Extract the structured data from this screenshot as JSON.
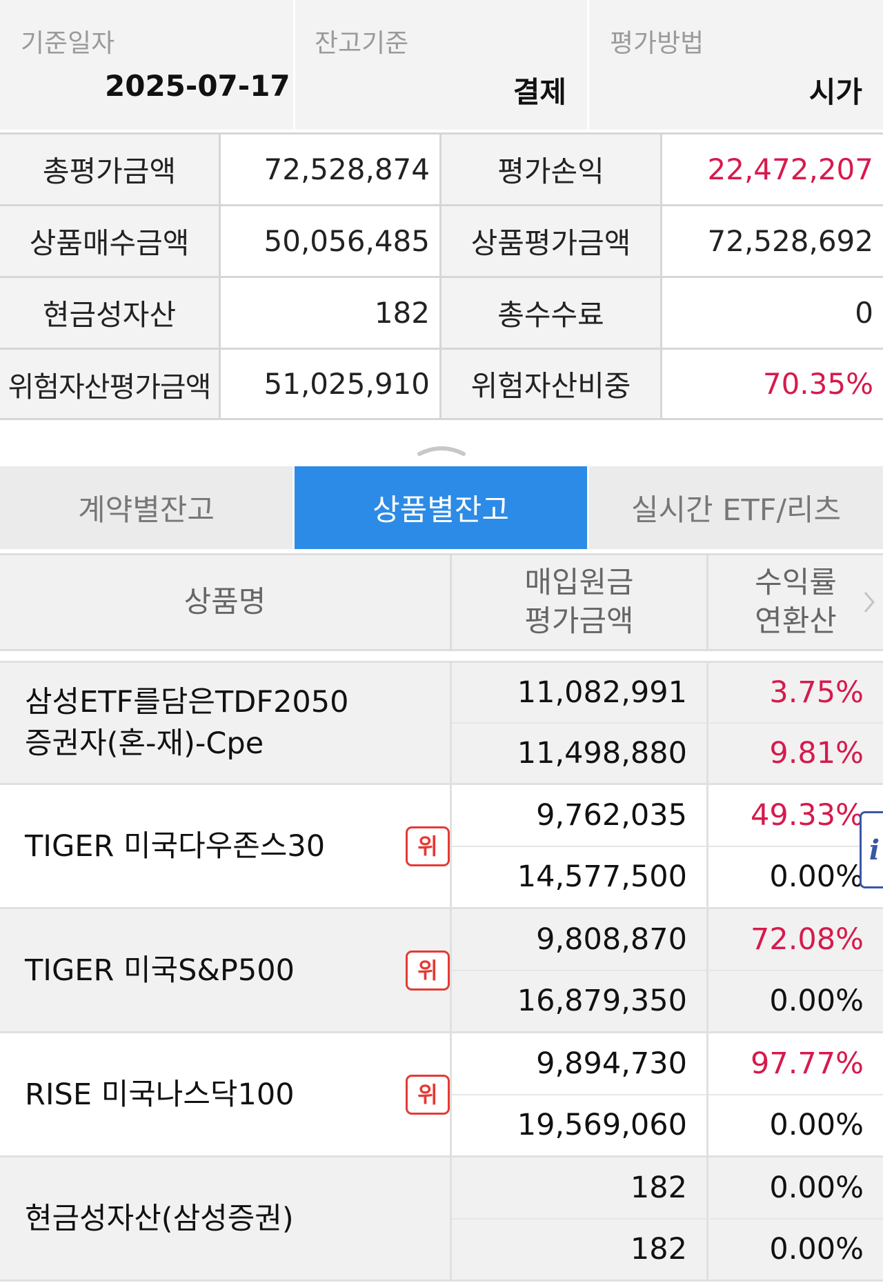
{
  "criteria": [
    {
      "label": "기준일자",
      "value": "2025-07-17"
    },
    {
      "label": "잔고기준",
      "value": "결제"
    },
    {
      "label": "평가방법",
      "value": "시가"
    }
  ],
  "summary": {
    "rows": [
      {
        "label1": "총평가금액",
        "value1": "72,528,874",
        "label2": "평가손익",
        "value2": "22,472,207"
      },
      {
        "label1": "상품매수금액",
        "value1": "50,056,485",
        "label2": "상품평가금액",
        "value2": "72,528,692"
      },
      {
        "label1": "현금성자산",
        "value1": "182",
        "label2": "총수수료",
        "value2": "0"
      },
      {
        "label1": "위험자산평가금액",
        "value1": "51,025,910",
        "label2": "위험자산비중",
        "value2": "70.35%"
      }
    ]
  },
  "tabs": [
    {
      "label": "계약별잔고",
      "active": false
    },
    {
      "label": "상품별잔고",
      "active": true
    },
    {
      "label": "실시간 ETF/리츠",
      "active": false
    }
  ],
  "table": {
    "headers": {
      "name": "상품명",
      "amount_line1": "매입원금",
      "amount_line2": "평가금액",
      "rate_line1": "수익률",
      "rate_line2": "연환산"
    },
    "rows": [
      {
        "name": "삼성ETF를담은TDF2050\n증권자(혼-재)-Cpe",
        "badge": "",
        "principal": "11,082,991",
        "valuation": "11,498,880",
        "return": "3.75%",
        "annualized": "9.81%"
      },
      {
        "name": "TIGER 미국다우존스30",
        "badge": "위",
        "principal": "9,762,035",
        "valuation": "14,577,500",
        "return": "49.33%",
        "annualized": "0.00%"
      },
      {
        "name": "TIGER 미국S&P500",
        "badge": "위",
        "principal": "9,808,870",
        "valuation": "16,879,350",
        "return": "72.08%",
        "annualized": "0.00%"
      },
      {
        "name": "RISE 미국나스닥100",
        "badge": "위",
        "principal": "9,894,730",
        "valuation": "19,569,060",
        "return": "97.77%",
        "annualized": "0.00%"
      },
      {
        "name": "현금성자산(삼성증권)",
        "badge": "",
        "principal": "182",
        "valuation": "182",
        "return": "0.00%",
        "annualized": "0.00%"
      }
    ]
  },
  "info_tab": {
    "label": "i"
  },
  "colors": {
    "accent": "#2c8be6",
    "positive": "#d61a4c",
    "badge": "#e53935"
  }
}
